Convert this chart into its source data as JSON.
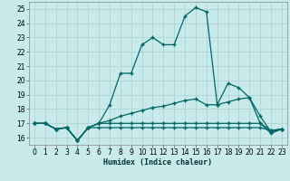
{
  "xlabel": "Humidex (Indice chaleur)",
  "background_color": "#c8eaea",
  "grid_color": "#b0d8d8",
  "line_color": "#006666",
  "xlim": [
    -0.5,
    23.5
  ],
  "ylim": [
    15.5,
    25.5
  ],
  "xticks": [
    0,
    1,
    2,
    3,
    4,
    5,
    6,
    7,
    8,
    9,
    10,
    11,
    12,
    13,
    14,
    15,
    16,
    17,
    18,
    19,
    20,
    21,
    22,
    23
  ],
  "yticks": [
    16,
    17,
    18,
    19,
    20,
    21,
    22,
    23,
    24,
    25
  ],
  "lines": [
    {
      "x": [
        0,
        1,
        2,
        3,
        4,
        5,
        6,
        7,
        8,
        9,
        10,
        11,
        12,
        13,
        14,
        15,
        16,
        17,
        18,
        19,
        20,
        21,
        22,
        23
      ],
      "y": [
        17.0,
        17.0,
        16.6,
        16.7,
        15.8,
        16.7,
        17.0,
        18.3,
        20.5,
        20.5,
        22.5,
        23.0,
        22.5,
        22.5,
        24.5,
        25.1,
        24.8,
        18.3,
        19.8,
        19.5,
        18.8,
        17.5,
        16.4,
        16.6
      ]
    },
    {
      "x": [
        0,
        1,
        2,
        3,
        4,
        5,
        6,
        7,
        8,
        9,
        10,
        11,
        12,
        13,
        14,
        15,
        16,
        17,
        18,
        19,
        20,
        21,
        22,
        23
      ],
      "y": [
        17.0,
        17.0,
        16.6,
        16.7,
        15.8,
        16.7,
        17.0,
        17.2,
        17.5,
        17.7,
        17.9,
        18.1,
        18.2,
        18.4,
        18.6,
        18.7,
        18.3,
        18.3,
        18.5,
        18.7,
        18.8,
        17.0,
        16.3,
        16.6
      ]
    },
    {
      "x": [
        0,
        1,
        2,
        3,
        4,
        5,
        6,
        7,
        8,
        9,
        10,
        11,
        12,
        13,
        14,
        15,
        16,
        17,
        18,
        19,
        20,
        21,
        22,
        23
      ],
      "y": [
        17.0,
        17.0,
        16.6,
        16.7,
        15.8,
        16.7,
        17.0,
        17.0,
        17.0,
        17.0,
        17.0,
        17.0,
        17.0,
        17.0,
        17.0,
        17.0,
        17.0,
        17.0,
        17.0,
        17.0,
        17.0,
        17.0,
        16.5,
        16.6
      ]
    },
    {
      "x": [
        0,
        1,
        2,
        3,
        4,
        5,
        6,
        7,
        8,
        9,
        10,
        11,
        12,
        13,
        14,
        15,
        16,
        17,
        18,
        19,
        20,
        21,
        22,
        23
      ],
      "y": [
        17.0,
        17.0,
        16.6,
        16.7,
        15.8,
        16.7,
        16.7,
        16.7,
        16.7,
        16.7,
        16.7,
        16.7,
        16.7,
        16.7,
        16.7,
        16.7,
        16.7,
        16.7,
        16.7,
        16.7,
        16.7,
        16.7,
        16.5,
        16.6
      ]
    }
  ]
}
